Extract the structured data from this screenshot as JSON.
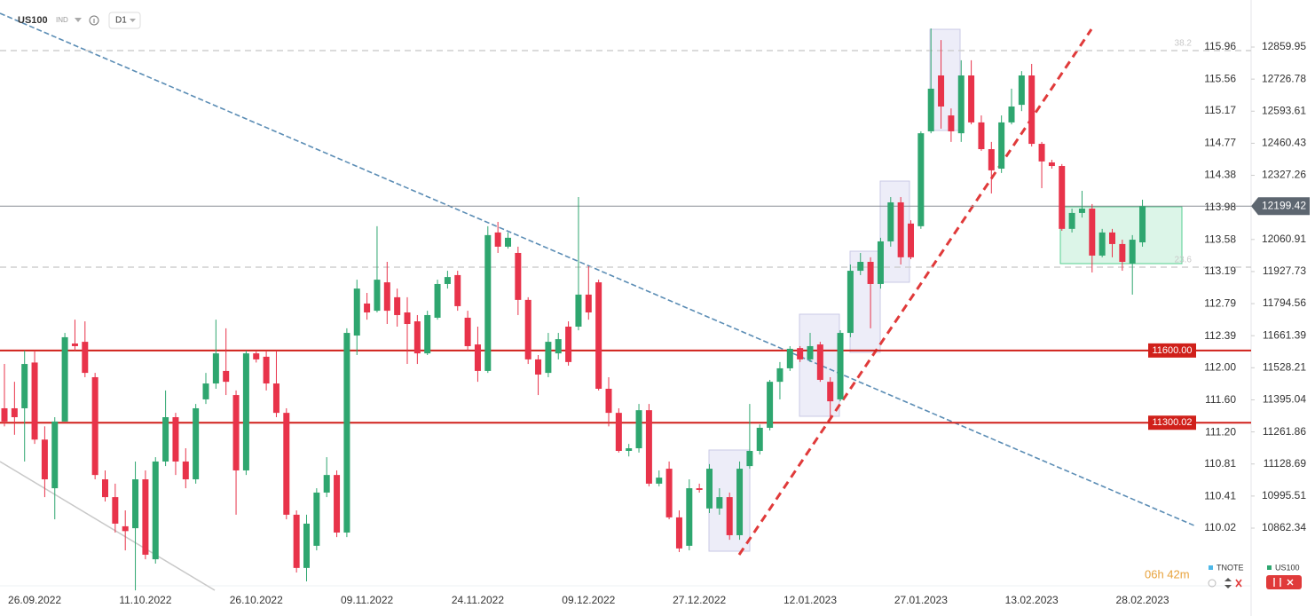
{
  "chart_data": {
    "type": "candlestick",
    "title": "US100",
    "market": "IND",
    "timeframe": "D1",
    "countdown": "06h 42m",
    "categories": [
      null,
      null,
      null,
      "26.09.2022",
      null,
      null,
      null,
      null,
      null,
      null,
      null,
      null,
      null,
      null,
      "11.10.2022",
      null,
      null,
      null,
      null,
      null,
      null,
      null,
      null,
      null,
      null,
      "26.10.2022",
      null,
      null,
      null,
      null,
      null,
      null,
      null,
      null,
      null,
      null,
      "09.11.2022",
      null,
      null,
      null,
      null,
      null,
      null,
      null,
      null,
      null,
      null,
      "24.11.2022",
      null,
      null,
      null,
      null,
      null,
      null,
      null,
      null,
      null,
      null,
      "09.12.2022",
      null,
      null,
      null,
      null,
      null,
      null,
      null,
      null,
      null,
      null,
      "27.12.2022",
      null,
      null,
      null,
      null,
      null,
      null,
      null,
      null,
      null,
      null,
      "12.01.2023",
      null,
      null,
      null,
      null,
      null,
      null,
      null,
      null,
      null,
      null,
      "27.01.2023",
      null,
      null,
      null,
      null,
      null,
      null,
      null,
      null,
      null,
      null,
      "13.02.2023",
      null,
      null,
      null,
      null,
      null,
      null,
      null,
      null,
      null,
      null,
      "28.02.2023"
    ],
    "series": [
      {
        "name": "TNOTE",
        "color": "#4fb8e8",
        "axis": "y2"
      },
      {
        "name": "US100",
        "color": "#2ea66f",
        "up_color": "#2ea66f",
        "down_color": "#e8334a",
        "open": [
          11360,
          11360,
          11360,
          11550,
          11230,
          11028,
          11305,
          11629,
          11636,
          11489,
          11065,
          10991,
          10870,
          10862,
          11065,
          10733,
          11139,
          11323,
          11139,
          11065,
          11397,
          11463,
          11515,
          11415,
          11102,
          11588,
          11574,
          11463,
          11341,
          10918,
          10697,
          10789,
          11010,
          11083,
          10844,
          11662,
          11795,
          11765,
          11883,
          11821,
          11758,
          11721,
          11588,
          11736,
          11876,
          11913,
          11736,
          11625,
          11515,
          12090,
          12031,
          12005,
          11810,
          11563,
          11507,
          11588,
          11699,
          11699,
          11832,
          11883,
          11441,
          11341,
          11183,
          11194,
          11352,
          11047,
          11109,
          10907,
          10789,
          11028,
          10944,
          10944,
          10991,
          10833,
          11120,
          11183,
          11279,
          11470,
          11526,
          11610,
          11563,
          11625,
          11470,
          11397,
          11673,
          11931,
          11968,
          11876,
          12053,
          12215,
          12127,
          12116,
          12510,
          12742,
          12576,
          12502,
          12742,
          12547,
          12436,
          12355,
          12547,
          12620,
          12742,
          12458,
          12381,
          12366,
          12105,
          12171,
          12189,
          11994,
          12090,
          12042,
          11961,
          12049
        ],
        "high": [
          11544,
          11470,
          11600,
          11600,
          11285,
          11323,
          11673,
          11728,
          11721,
          11507,
          11102,
          11047,
          10936,
          11139,
          11102,
          11157,
          11434,
          11341,
          11194,
          11378,
          11507,
          11728,
          11692,
          11434,
          11600,
          11600,
          11600,
          11600,
          11360,
          10936,
          10918,
          11028,
          11157,
          11102,
          11692,
          11894,
          11839,
          12116,
          11968,
          11857,
          11821,
          11747,
          11765,
          11894,
          11931,
          11931,
          11765,
          11699,
          12116,
          12134,
          12090,
          12031,
          11821,
          11581,
          11673,
          11673,
          11721,
          12237,
          11950,
          11894,
          11489,
          11360,
          11212,
          11378,
          11378,
          11102,
          11139,
          10936,
          11065,
          11047,
          11128,
          11028,
          11010,
          11139,
          11378,
          11293,
          11478,
          11552,
          11618,
          11618,
          11673,
          11636,
          11489,
          11684,
          11957,
          12005,
          11987,
          12068,
          12237,
          12237,
          12141,
          12510,
          12937,
          12889,
          12605,
          12805,
          12805,
          12576,
          12466,
          12576,
          12687,
          12760,
          12790,
          12466,
          12392,
          12374,
          12189,
          12263,
          12208,
          12105,
          12105,
          12060,
          12079,
          12226
        ],
        "low": [
          11285,
          11250,
          11139,
          11212,
          10991,
          10899,
          11305,
          11600,
          11489,
          11065,
          10973,
          10844,
          10770,
          10604,
          10733,
          10715,
          11120,
          11083,
          11028,
          11047,
          11378,
          11441,
          11415,
          10918,
          11083,
          11550,
          11434,
          11323,
          10899,
          10678,
          10641,
          10770,
          10991,
          10825,
          10825,
          11581,
          11728,
          11758,
          11710,
          11699,
          11544,
          11544,
          11581,
          11728,
          11857,
          11765,
          11600,
          11470,
          11507,
          12005,
          12023,
          11747,
          11544,
          11415,
          11489,
          11563,
          11537,
          11684,
          11728,
          11434,
          11285,
          11176,
          11160,
          11176,
          11036,
          11036,
          10899,
          10763,
          10770,
          11010,
          10925,
          10918,
          10814,
          10814,
          11109,
          11168,
          11268,
          11397,
          11515,
          11552,
          11552,
          11470,
          11323,
          11389,
          11655,
          11913,
          11692,
          11857,
          12031,
          11957,
          11979,
          12105,
          12502,
          12521,
          12466,
          12466,
          12539,
          12429,
          12252,
          12337,
          12539,
          12594,
          12447,
          12274,
          12355,
          12097,
          12090,
          12152,
          11924,
          11987,
          11987,
          11931,
          11832,
          12031
        ],
        "close": [
          11305,
          11323,
          11544,
          11230,
          11065,
          11305,
          11655,
          11618,
          11507,
          11083,
          10991,
          10881,
          10850,
          11065,
          10752,
          11139,
          11323,
          11139,
          11065,
          11360,
          11463,
          11588,
          11470,
          11102,
          11588,
          11563,
          11463,
          11341,
          10918,
          10697,
          10881,
          11010,
          11083,
          10844,
          11673,
          11857,
          11758,
          11894,
          11765,
          11747,
          11710,
          11588,
          11747,
          11876,
          11905,
          11784,
          11618,
          11515,
          12079,
          12031,
          12068,
          11810,
          11563,
          11500,
          11636,
          11647,
          11552,
          11832,
          11758,
          11441,
          11341,
          11183,
          11194,
          11352,
          11047,
          11072,
          10907,
          10778,
          11028,
          11021,
          11109,
          10991,
          10833,
          11109,
          11183,
          11279,
          11470,
          11526,
          11607,
          11563,
          11618,
          11478,
          11389,
          11673,
          11931,
          11968,
          11876,
          12053,
          12215,
          11987,
          11987,
          12502,
          12687,
          12613,
          12510,
          12742,
          12547,
          12436,
          12348,
          12547,
          12613,
          12742,
          12458,
          12385,
          12366,
          12105,
          12171,
          12189,
          11994,
          12090,
          12042,
          11968,
          12060,
          12199.42
        ]
      }
    ],
    "ylim": [
      10593.3,
      13055.3
    ],
    "yticks": [
      12859.95,
      12726.78,
      12593.61,
      12460.43,
      12327.26,
      12060.91,
      11927.73,
      11794.56,
      11661.39,
      11528.21,
      11395.04,
      11261.86,
      11128.69,
      10995.51,
      10862.34
    ],
    "y2lim": [
      109.22,
      116.54
    ],
    "y2ticks": [
      115.96,
      115.56,
      115.17,
      114.77,
      114.38,
      113.98,
      113.58,
      113.19,
      112.79,
      112.39,
      {
        "value": 112,
        "label": "112.00"
      },
      {
        "value": 111.6,
        "label": "111.60"
      },
      {
        "value": 111.2,
        "label": "111.20"
      },
      110.81,
      110.41,
      110.02
    ],
    "levels": [
      {
        "value": 11600,
        "label": "11600.00",
        "color": "#d0201a"
      },
      {
        "value": 11300.02,
        "label": "11300.02",
        "color": "#d0201a"
      }
    ],
    "fib_levels": [
      {
        "ratio": 38.2,
        "price": 12845
      },
      {
        "ratio": 23.6,
        "price": 11946
      }
    ],
    "last_price": 12199.42
  }
}
